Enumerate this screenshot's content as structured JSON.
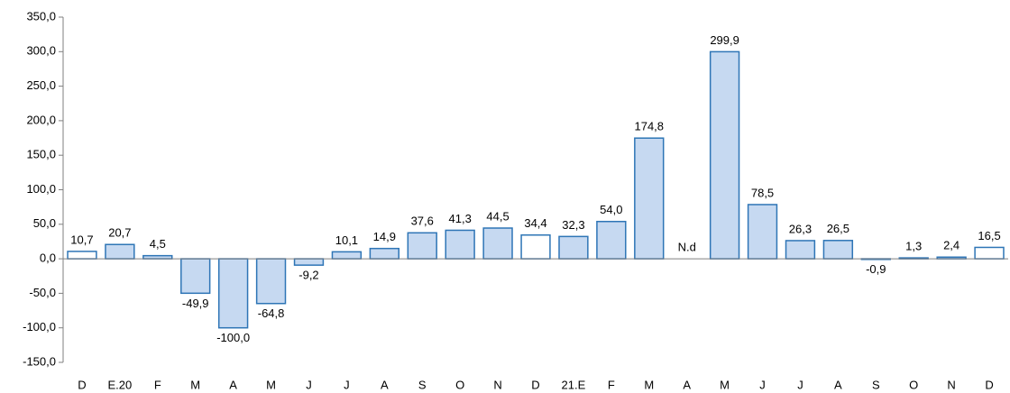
{
  "chart_data": {
    "type": "bar",
    "categories": [
      "D",
      "E.20",
      "F",
      "M",
      "A",
      "M",
      "J",
      "J",
      "A",
      "S",
      "O",
      "N",
      "D",
      "21.E",
      "F",
      "M",
      "A",
      "M",
      "J",
      "J",
      "A",
      "S",
      "O",
      "N",
      "D"
    ],
    "values": [
      10.7,
      20.7,
      4.5,
      -49.9,
      -100.0,
      -64.8,
      -9.2,
      10.1,
      14.9,
      37.6,
      41.3,
      44.5,
      34.4,
      32.3,
      54.0,
      174.8,
      null,
      299.9,
      78.5,
      26.3,
      26.5,
      -0.9,
      1.3,
      2.4,
      16.5
    ],
    "value_labels": [
      "10,7",
      "20,7",
      "4,5",
      "-49,9",
      "-100,0",
      "-64,8",
      "-9,2",
      "10,1",
      "14,9",
      "37,6",
      "41,3",
      "44,5",
      "34,4",
      "32,3",
      "54,0",
      "174,8",
      "N.d",
      "299,9",
      "78,5",
      "26,3",
      "26,5",
      "-0,9",
      "1,3",
      "2,4",
      "16,5"
    ],
    "colors": [
      "#ffffff",
      "#c6d9f1",
      "#c6d9f1",
      "#c6d9f1",
      "#c6d9f1",
      "#c6d9f1",
      "#c6d9f1",
      "#c6d9f1",
      "#c6d9f1",
      "#c6d9f1",
      "#c6d9f1",
      "#c6d9f1",
      "#ffffff",
      "#c6d9f1",
      "#c6d9f1",
      "#c6d9f1",
      "#c6d9f1",
      "#c6d9f1",
      "#c6d9f1",
      "#c6d9f1",
      "#c6d9f1",
      "#c6d9f1",
      "#c6d9f1",
      "#c6d9f1",
      "#ffffff"
    ],
    "edge_color": "#2e75b6",
    "ylim": [
      -150,
      350
    ],
    "yticks": [
      {
        "value": -150,
        "label": "-150,0"
      },
      {
        "value": -100,
        "label": "-100,0"
      },
      {
        "value": -50,
        "label": "-50,0"
      },
      {
        "value": 0,
        "label": "0,0"
      },
      {
        "value": 50,
        "label": "50,0"
      },
      {
        "value": 100,
        "label": "100,0"
      },
      {
        "value": 150,
        "label": "150,0"
      },
      {
        "value": 200,
        "label": "200,0"
      },
      {
        "value": 250,
        "label": "250,0"
      },
      {
        "value": 300,
        "label": "300,0"
      },
      {
        "value": 350,
        "label": "350,0"
      }
    ],
    "grid": false
  }
}
